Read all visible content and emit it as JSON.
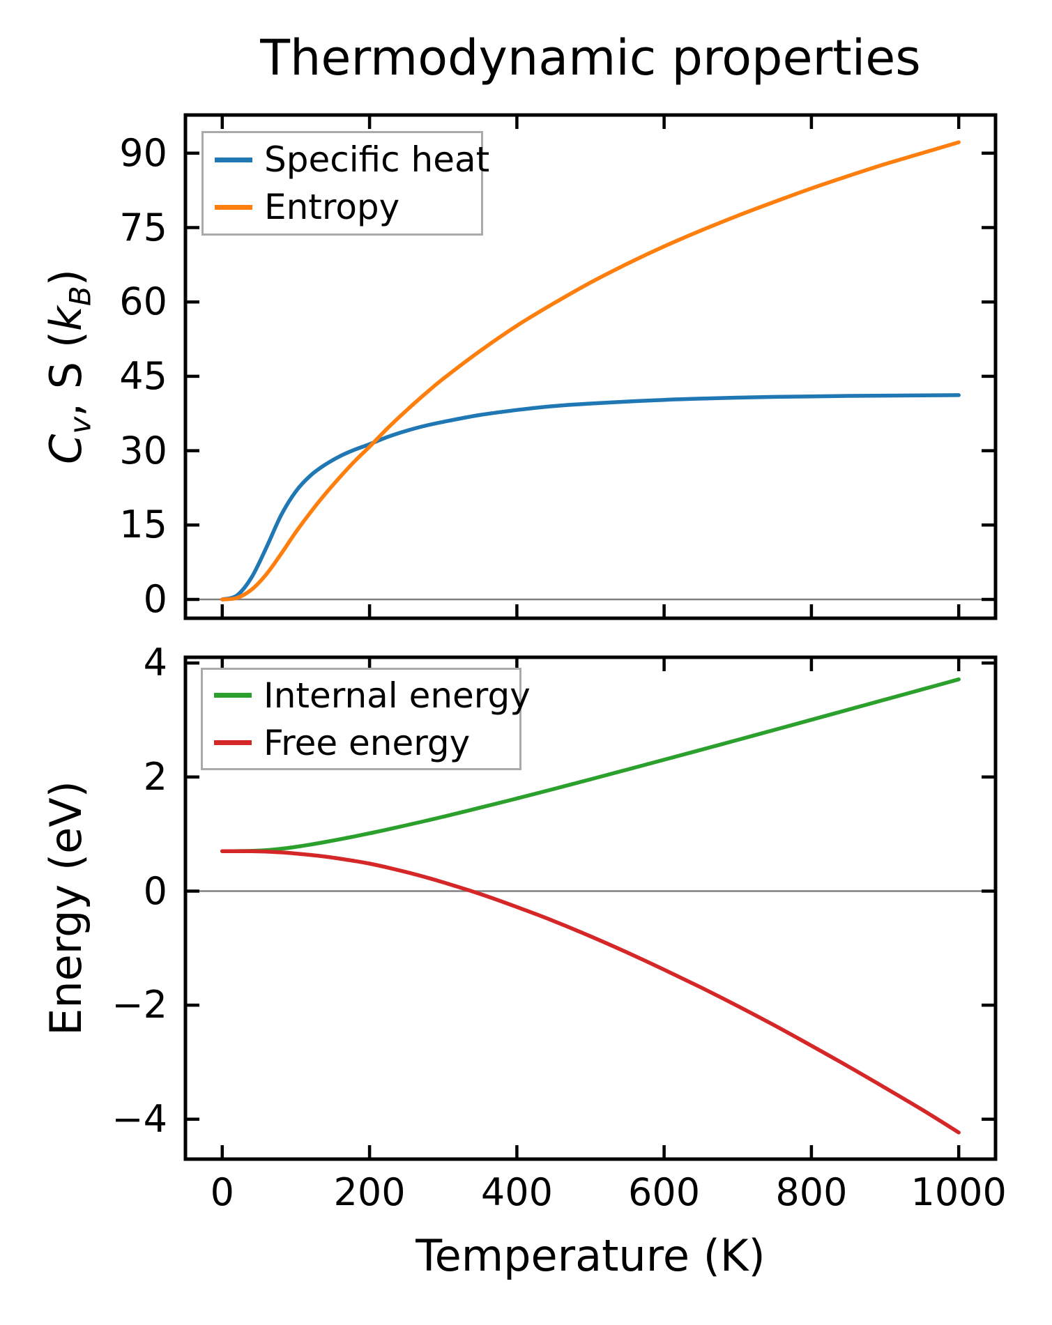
{
  "title": "Thermodynamic properties",
  "colors": {
    "specific_heat": "#1f77b4",
    "entropy": "#ff7f0e",
    "internal_energy": "#2ca02c",
    "free_energy": "#d62728",
    "spine": "#000000",
    "zero_line": "#808080",
    "legend_border": "#aaaaaa",
    "background": "#ffffff",
    "text": "#000000"
  },
  "x_axis": {
    "label": "Temperature (K)",
    "tick_labels": [
      "0",
      "200",
      "400",
      "600",
      "800",
      "1000"
    ]
  },
  "chart_data": [
    {
      "type": "line",
      "title": "Thermodynamic properties",
      "xlabel": "",
      "ylabel": "C_v, S (k_B)",
      "ylabel_parts": {
        "p1": "C",
        "p2": "v",
        "p3": ", S (",
        "p4": "k",
        "p5": "B",
        "p6": ")"
      },
      "xlim": [
        -50,
        1050
      ],
      "ylim": [
        -3.8,
        97.7
      ],
      "xticks": [
        0,
        200,
        400,
        600,
        800,
        1000
      ],
      "xtick_labels": [],
      "yticks": [
        0,
        15,
        30,
        45,
        60,
        75,
        90
      ],
      "ytick_labels": [
        "0",
        "15",
        "30",
        "45",
        "60",
        "75",
        "90"
      ],
      "grid": false,
      "zero_line": true,
      "legend_position": "upper left",
      "x": [
        0,
        20,
        40,
        60,
        80,
        100,
        120,
        140,
        160,
        180,
        200,
        225,
        250,
        275,
        300,
        350,
        400,
        450,
        500,
        550,
        600,
        650,
        700,
        750,
        800,
        850,
        900,
        950,
        1000
      ],
      "series": [
        {
          "name": "Specific heat",
          "color": "#1f77b4",
          "values": [
            0,
            0.8,
            4.5,
            10.5,
            17.0,
            21.8,
            25.0,
            27.2,
            28.9,
            30.2,
            31.3,
            32.8,
            34.0,
            35.0,
            35.8,
            37.2,
            38.2,
            39.0,
            39.5,
            39.9,
            40.25,
            40.5,
            40.7,
            40.85,
            40.95,
            41.05,
            41.1,
            41.15,
            41.2
          ]
        },
        {
          "name": "Entropy",
          "color": "#ff7f0e",
          "values": [
            0,
            0.3,
            2.0,
            5.1,
            9.2,
            13.6,
            17.6,
            21.3,
            24.7,
            27.9,
            30.8,
            34.6,
            38.1,
            41.4,
            44.5,
            50.1,
            55.2,
            59.7,
            63.9,
            67.7,
            71.2,
            74.4,
            77.4,
            80.2,
            82.9,
            85.4,
            87.8,
            90.0,
            92.2
          ]
        }
      ]
    },
    {
      "type": "line",
      "title": "",
      "xlabel": "Temperature (K)",
      "ylabel": "Energy (eV)",
      "xlim": [
        -50,
        1050
      ],
      "ylim": [
        -4.7,
        4.1
      ],
      "xticks": [
        0,
        200,
        400,
        600,
        800,
        1000
      ],
      "xtick_labels": [
        "0",
        "200",
        "400",
        "600",
        "800",
        "1000"
      ],
      "yticks": [
        4,
        2,
        0,
        -2,
        -4
      ],
      "ytick_labels": [
        "4",
        "2",
        "0",
        "−2",
        "−4"
      ],
      "grid": false,
      "zero_line": true,
      "legend_position": "upper left",
      "x": [
        0,
        20,
        40,
        60,
        80,
        100,
        120,
        140,
        160,
        180,
        200,
        225,
        250,
        275,
        300,
        350,
        400,
        450,
        500,
        550,
        600,
        650,
        700,
        750,
        800,
        850,
        900,
        950,
        1000
      ],
      "series": [
        {
          "name": "Internal energy",
          "color": "#2ca02c",
          "values": [
            0.7,
            0.701,
            0.705,
            0.718,
            0.742,
            0.775,
            0.816,
            0.861,
            0.909,
            0.96,
            1.013,
            1.082,
            1.154,
            1.228,
            1.304,
            1.462,
            1.624,
            1.79,
            1.96,
            2.131,
            2.303,
            2.477,
            2.652,
            2.828,
            3.004,
            3.181,
            3.358,
            3.535,
            3.712
          ]
        },
        {
          "name": "Free energy",
          "color": "#d62728",
          "values": [
            0.7,
            0.7,
            0.698,
            0.692,
            0.679,
            0.658,
            0.634,
            0.604,
            0.568,
            0.527,
            0.482,
            0.411,
            0.333,
            0.247,
            0.154,
            -0.049,
            -0.279,
            -0.525,
            -0.793,
            -1.077,
            -1.378,
            -1.69,
            -2.016,
            -2.356,
            -2.711,
            -3.074,
            -3.449,
            -3.831,
            -4.233
          ]
        }
      ]
    }
  ]
}
